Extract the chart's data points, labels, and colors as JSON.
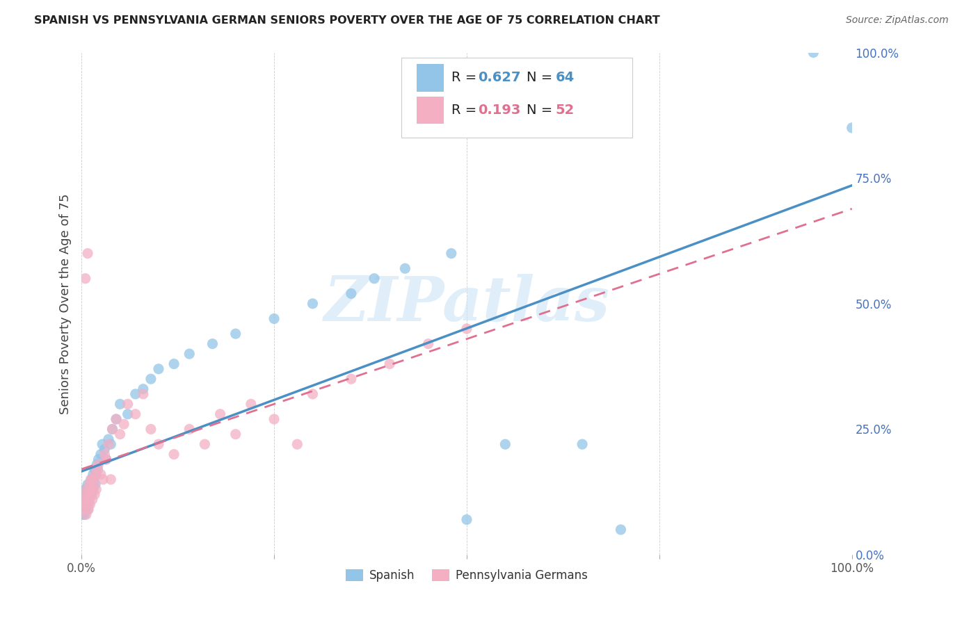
{
  "title": "SPANISH VS PENNSYLVANIA GERMAN SENIORS POVERTY OVER THE AGE OF 75 CORRELATION CHART",
  "source": "Source: ZipAtlas.com",
  "ylabel": "Seniors Poverty Over the Age of 75",
  "xlim": [
    0,
    1.0
  ],
  "ylim": [
    0,
    1.0
  ],
  "blue_color": "#92c5e8",
  "pink_color": "#f4afc3",
  "blue_line_color": "#4a90c4",
  "pink_line_color": "#e07090",
  "watermark": "ZIPatlas",
  "spanish_x": [
    0.001,
    0.002,
    0.002,
    0.003,
    0.003,
    0.004,
    0.004,
    0.005,
    0.005,
    0.006,
    0.006,
    0.007,
    0.007,
    0.008,
    0.008,
    0.009,
    0.009,
    0.01,
    0.01,
    0.011,
    0.011,
    0.012,
    0.013,
    0.013,
    0.014,
    0.015,
    0.015,
    0.016,
    0.017,
    0.018,
    0.019,
    0.02,
    0.021,
    0.022,
    0.025,
    0.027,
    0.03,
    0.032,
    0.035,
    0.038,
    0.04,
    0.045,
    0.05,
    0.06,
    0.07,
    0.08,
    0.09,
    0.1,
    0.12,
    0.14,
    0.17,
    0.2,
    0.25,
    0.3,
    0.35,
    0.38,
    0.42,
    0.48,
    0.5,
    0.55,
    0.65,
    0.7,
    0.95,
    1.0
  ],
  "spanish_y": [
    0.08,
    0.09,
    0.11,
    0.1,
    0.12,
    0.08,
    0.13,
    0.09,
    0.11,
    0.1,
    0.12,
    0.11,
    0.13,
    0.09,
    0.14,
    0.1,
    0.12,
    0.11,
    0.13,
    0.12,
    0.14,
    0.13,
    0.15,
    0.12,
    0.14,
    0.13,
    0.16,
    0.15,
    0.17,
    0.14,
    0.16,
    0.18,
    0.17,
    0.19,
    0.2,
    0.22,
    0.21,
    0.19,
    0.23,
    0.22,
    0.25,
    0.27,
    0.3,
    0.28,
    0.32,
    0.33,
    0.35,
    0.37,
    0.38,
    0.4,
    0.42,
    0.44,
    0.47,
    0.5,
    0.52,
    0.55,
    0.57,
    0.6,
    0.07,
    0.22,
    0.22,
    0.05,
    1.0,
    0.85
  ],
  "pa_german_x": [
    0.001,
    0.002,
    0.003,
    0.004,
    0.005,
    0.005,
    0.006,
    0.007,
    0.008,
    0.008,
    0.009,
    0.01,
    0.01,
    0.011,
    0.012,
    0.013,
    0.014,
    0.015,
    0.016,
    0.017,
    0.018,
    0.019,
    0.02,
    0.022,
    0.025,
    0.028,
    0.03,
    0.032,
    0.035,
    0.038,
    0.04,
    0.045,
    0.05,
    0.055,
    0.06,
    0.07,
    0.08,
    0.09,
    0.1,
    0.12,
    0.14,
    0.16,
    0.18,
    0.2,
    0.22,
    0.25,
    0.28,
    0.3,
    0.35,
    0.4,
    0.45,
    0.5
  ],
  "pa_german_y": [
    0.1,
    0.09,
    0.11,
    0.1,
    0.55,
    0.12,
    0.08,
    0.13,
    0.11,
    0.6,
    0.09,
    0.14,
    0.12,
    0.1,
    0.15,
    0.13,
    0.11,
    0.15,
    0.14,
    0.12,
    0.16,
    0.13,
    0.17,
    0.18,
    0.16,
    0.15,
    0.2,
    0.19,
    0.22,
    0.15,
    0.25,
    0.27,
    0.24,
    0.26,
    0.3,
    0.28,
    0.32,
    0.25,
    0.22,
    0.2,
    0.25,
    0.22,
    0.28,
    0.24,
    0.3,
    0.27,
    0.22,
    0.32,
    0.35,
    0.38,
    0.42,
    0.45
  ]
}
